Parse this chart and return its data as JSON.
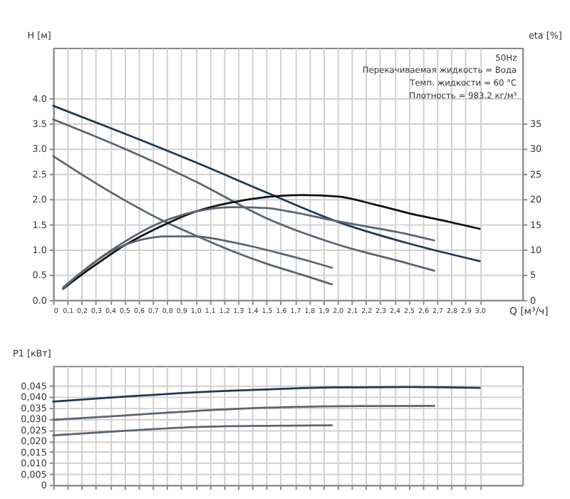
{
  "chart_data": [
    {
      "type": "line",
      "xlabel": "Q [м³/ч]",
      "ylabel": "H [м]",
      "y2label": "eta [%]",
      "grid": true,
      "annotations": [
        "50Hz",
        "Перекачиваемая жидкость = Вода",
        "Темп. жидкости = 60 °C",
        "Плотность = 983.2 кг/м³"
      ],
      "xlim": [
        0,
        3.3
      ],
      "xticks": [
        0,
        {
          "value": 0.1,
          "label": "0,1"
        },
        {
          "value": 0.2,
          "label": "0,2"
        },
        {
          "value": 0.3,
          "label": "0,3"
        },
        {
          "value": 0.4,
          "label": "0,4"
        },
        {
          "value": 0.5,
          "label": "0,5"
        },
        {
          "value": 0.6,
          "label": "0,6"
        },
        {
          "value": 0.7,
          "label": "0,7"
        },
        {
          "value": 0.8,
          "label": "0,8"
        },
        {
          "value": 0.9,
          "label": "0,9"
        },
        {
          "value": 1.0,
          "label": "1,0"
        },
        {
          "value": 1.1,
          "label": "1,1"
        },
        {
          "value": 1.2,
          "label": "1,2"
        },
        {
          "value": 1.3,
          "label": "1,3"
        },
        {
          "value": 1.4,
          "label": "1,4"
        },
        {
          "value": 1.5,
          "label": "1,5"
        },
        {
          "value": 1.6,
          "label": "1,6"
        },
        {
          "value": 1.7,
          "label": "1,7"
        },
        {
          "value": 1.8,
          "label": "1,8"
        },
        {
          "value": 1.9,
          "label": "1,9"
        },
        {
          "value": 2.0,
          "label": "2,0"
        },
        {
          "value": 2.1,
          "label": "2,1"
        },
        {
          "value": 2.2,
          "label": "2,2"
        },
        {
          "value": 2.3,
          "label": "2,3"
        },
        {
          "value": 2.4,
          "label": "2,4"
        },
        {
          "value": 2.5,
          "label": "2,5"
        },
        {
          "value": 2.6,
          "label": "2,6"
        },
        {
          "value": 2.7,
          "label": "2,7"
        },
        {
          "value": 2.8,
          "label": "2,8"
        },
        {
          "value": 2.9,
          "label": "2,9"
        },
        {
          "value": 3.0,
          "label": "3,0"
        }
      ],
      "ylim": [
        0,
        5
      ],
      "yticks": [
        {
          "value": 0,
          "label": "0.0"
        },
        0.5,
        {
          "value": 1,
          "label": "1.0"
        },
        1.5,
        {
          "value": 2,
          "label": "2.0"
        },
        2.5,
        {
          "value": 3,
          "label": "3.0"
        },
        3.5,
        {
          "value": 4,
          "label": "4.0"
        }
      ],
      "y2lim": [
        0,
        50
      ],
      "y2ticks": [
        0,
        5,
        10,
        15,
        20,
        25,
        30,
        35
      ],
      "series": [
        {
          "color": "#1f3a55",
          "x": [
            0,
            0.5,
            1.0,
            1.5,
            2.0,
            2.5,
            3.0
          ],
          "values": [
            3.85,
            3.3,
            2.73,
            2.13,
            1.55,
            1.12,
            0.77
          ]
        },
        {
          "color": "#5a6570",
          "x": [
            0,
            0.5,
            1.0,
            1.5,
            2.0,
            2.5,
            2.68
          ],
          "values": [
            3.58,
            3.0,
            2.35,
            1.62,
            1.1,
            0.72,
            0.58
          ]
        },
        {
          "color": "#5a6570",
          "x": [
            0,
            0.25,
            0.5,
            0.75,
            1.0,
            1.25,
            1.5,
            1.75,
            1.96
          ],
          "values": [
            2.85,
            2.4,
            1.98,
            1.6,
            1.28,
            0.98,
            0.72,
            0.5,
            0.31
          ]
        },
        {
          "axis": "y2",
          "color": "#111111",
          "x": [
            0.07,
            0.2,
            0.3,
            0.5,
            0.75,
            1.0,
            1.25,
            1.5,
            1.75,
            2.0,
            2.25,
            2.5,
            2.75,
            3.0
          ],
          "values": [
            2.2,
            5,
            7,
            10.8,
            14.5,
            17.5,
            19.3,
            20.4,
            20.8,
            20.5,
            19,
            17.2,
            15.7,
            14.1
          ]
        },
        {
          "axis": "y2",
          "color": "#5a6570",
          "x": [
            0.07,
            0.2,
            0.5,
            0.75,
            1.0,
            1.25,
            1.5,
            1.63,
            2.0,
            2.5,
            2.68
          ],
          "values": [
            2.3,
            5.5,
            11.5,
            15.3,
            17.5,
            18.4,
            18.2,
            17.7,
            15.6,
            13,
            11.8
          ]
        },
        {
          "axis": "y2",
          "color": "#5a6570",
          "x": [
            0.07,
            0.2,
            0.4,
            0.6,
            0.8,
            1.0,
            1.2,
            1.4,
            1.6,
            1.8,
            1.96
          ],
          "values": [
            2.5,
            5.5,
            9.5,
            11.8,
            12.6,
            12.6,
            11.8,
            10.6,
            9.2,
            7.7,
            6.4
          ]
        }
      ]
    },
    {
      "type": "line",
      "ylabel": "P1 [кВт]",
      "grid": true,
      "tick_labels": "y",
      "xlim": [
        0,
        3.3
      ],
      "xticks": [
        0,
        0.1,
        0.2,
        0.3,
        0.4,
        0.5,
        0.6,
        0.7,
        0.8,
        0.9,
        1.0,
        1.1,
        1.2,
        1.3,
        1.4,
        1.5,
        1.6,
        1.7,
        1.8,
        1.9,
        2.0,
        2.1,
        2.2,
        2.3,
        2.4,
        2.5,
        2.6,
        2.7,
        2.8,
        2.9,
        3.0
      ],
      "ylim": [
        0,
        0.054
      ],
      "yticks": [
        0,
        {
          "value": 0.005,
          "label": "0,005"
        },
        {
          "value": 0.01,
          "label": "0,010"
        },
        {
          "value": 0.015,
          "label": "0,015"
        },
        {
          "value": 0.02,
          "label": "0,020"
        },
        {
          "value": 0.025,
          "label": "0,025"
        },
        {
          "value": 0.03,
          "label": "0,030"
        },
        {
          "value": 0.035,
          "label": "0,035"
        },
        {
          "value": 0.04,
          "label": "0,040"
        },
        {
          "value": 0.045,
          "label": "0,045"
        }
      ],
      "series": [
        {
          "color": "#1f3a55",
          "x": [
            0,
            0.5,
            1.0,
            1.5,
            2.0,
            2.5,
            3.0
          ],
          "values": [
            0.0378,
            0.04,
            0.042,
            0.0433,
            0.0442,
            0.0444,
            0.044
          ]
        },
        {
          "color": "#5a6570",
          "x": [
            0,
            0.5,
            1.0,
            1.5,
            2.0,
            2.68
          ],
          "values": [
            0.0295,
            0.0315,
            0.0335,
            0.035,
            0.0357,
            0.0358
          ]
        },
        {
          "color": "#5a6570",
          "x": [
            0,
            0.5,
            1.0,
            1.5,
            1.96
          ],
          "values": [
            0.0225,
            0.0245,
            0.0262,
            0.0268,
            0.027
          ]
        }
      ]
    }
  ]
}
